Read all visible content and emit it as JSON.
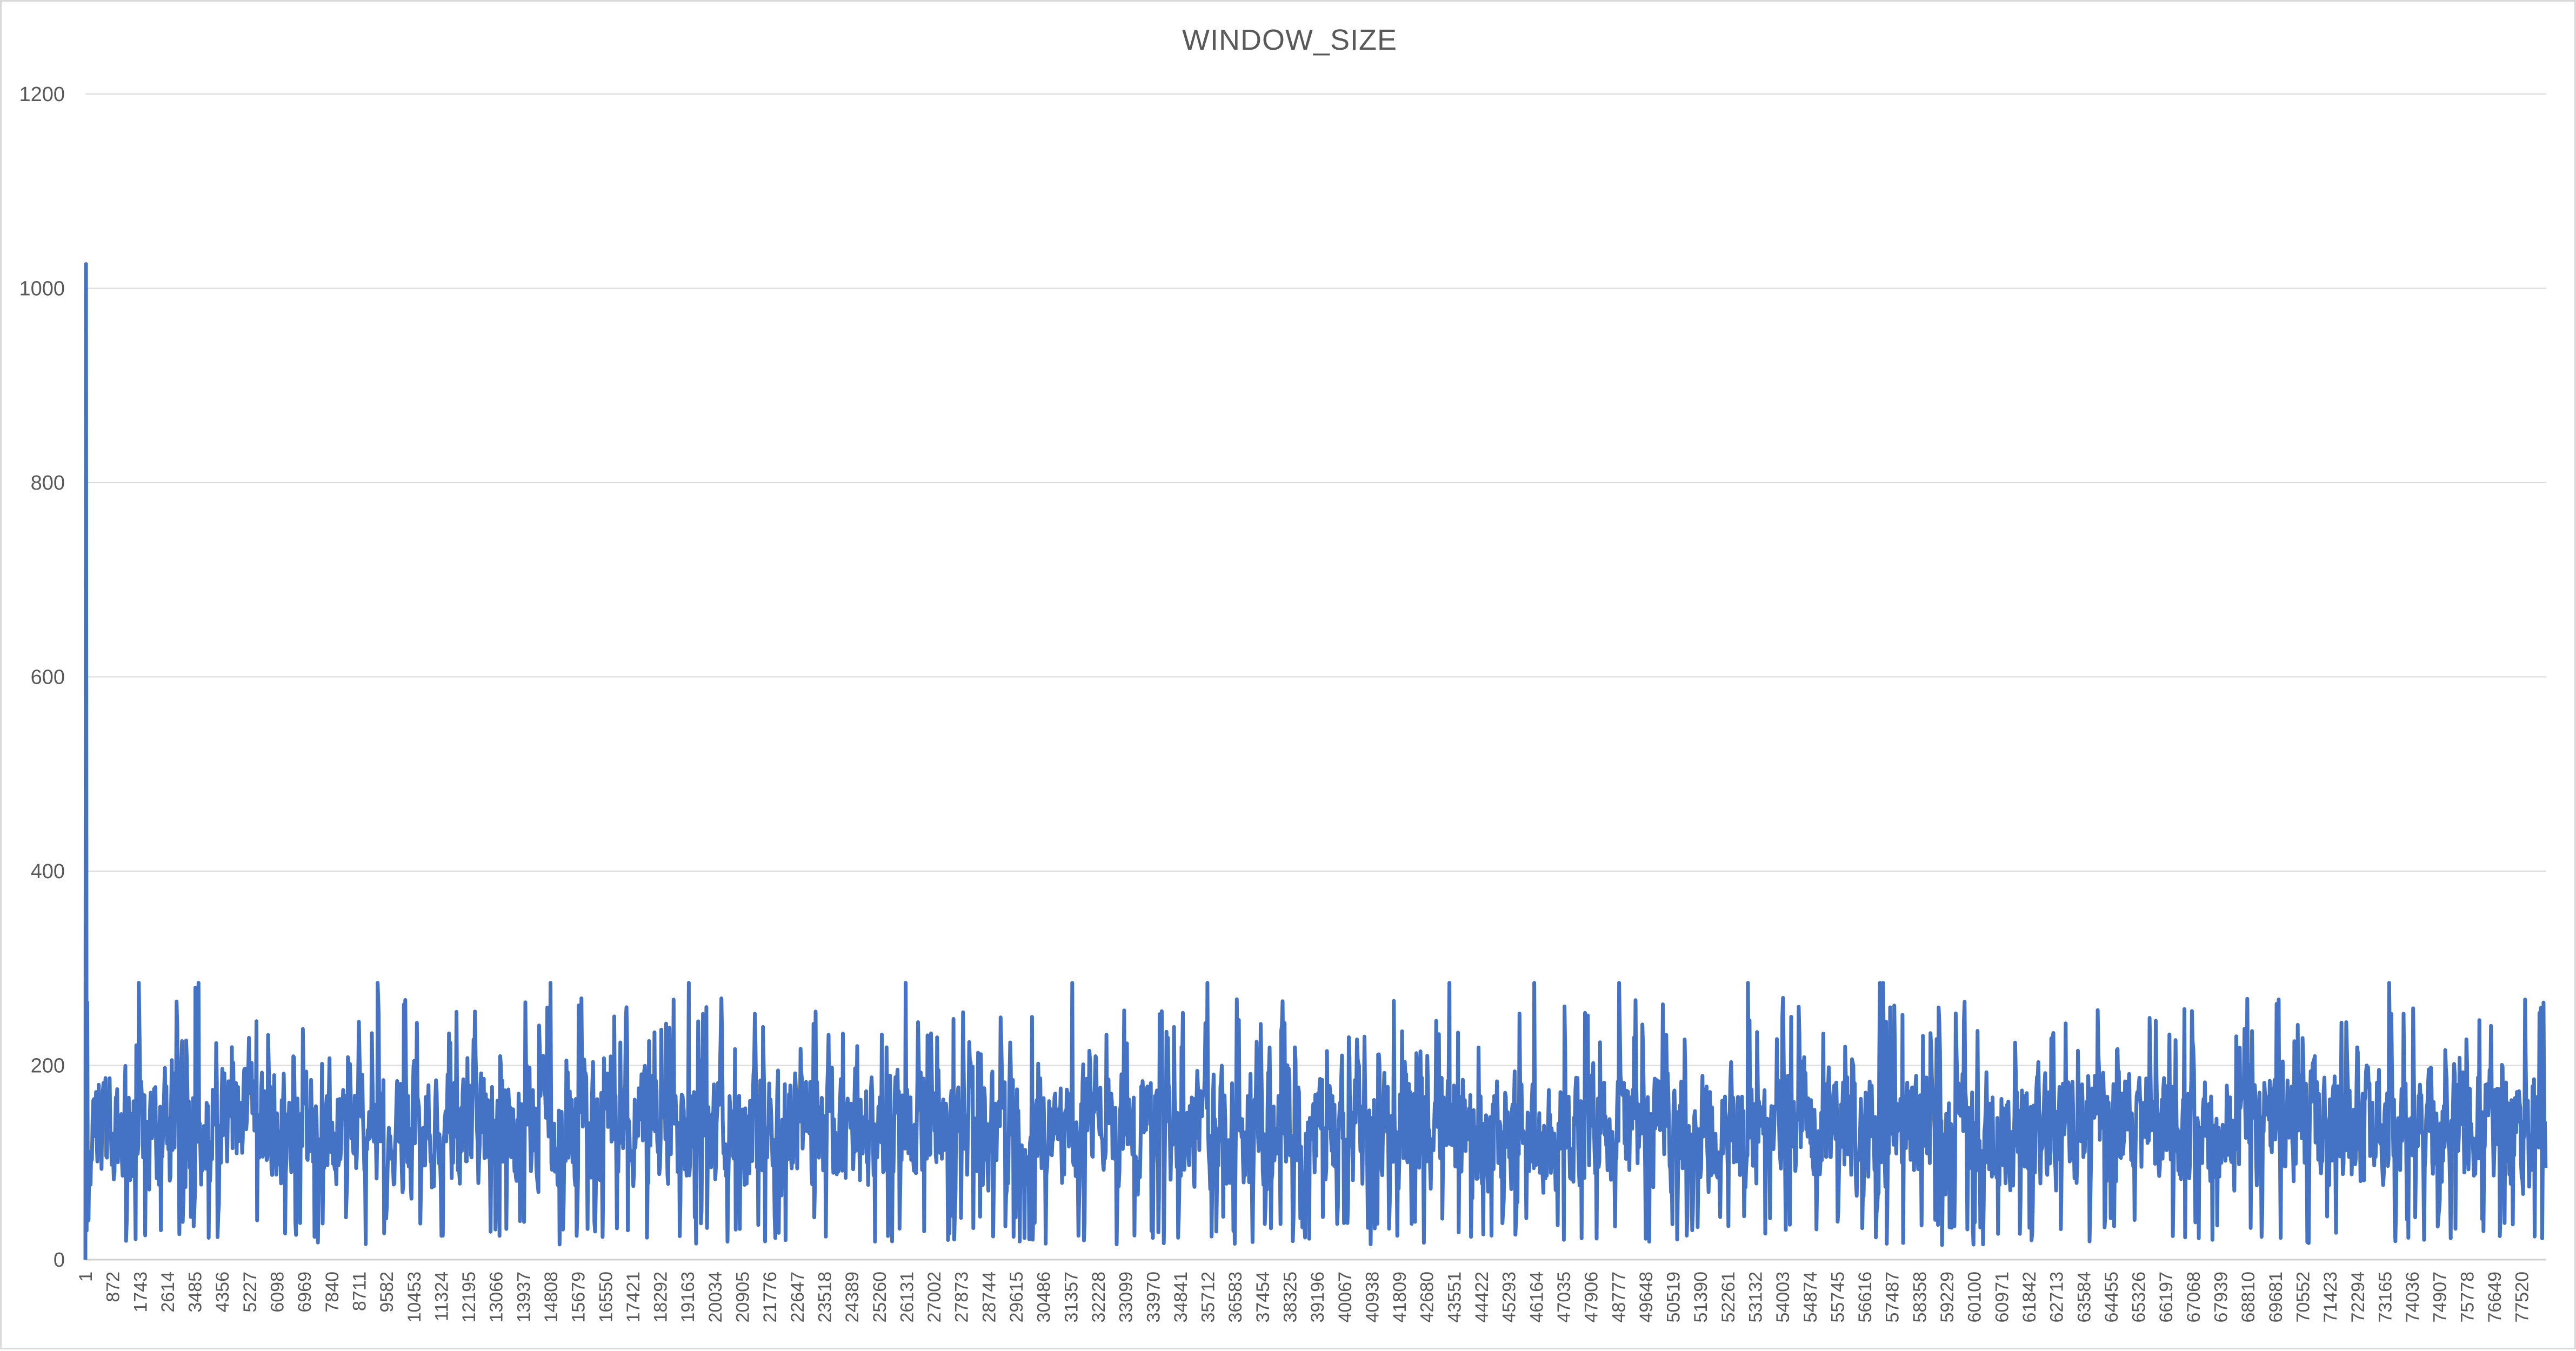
{
  "chart_data": {
    "type": "line",
    "title": "WINDOW_SIZE",
    "xlabel": "",
    "ylabel": "",
    "ylim": [
      0,
      1200
    ],
    "yticks": [
      0,
      200,
      400,
      600,
      800,
      1000,
      1200
    ],
    "xlim": [
      1,
      78300
    ],
    "x_tick_labels": [
      1,
      872,
      1743,
      2614,
      3485,
      4356,
      5227,
      6098,
      6969,
      7840,
      8711,
      9582,
      10453,
      11324,
      12195,
      13066,
      13937,
      14808,
      15679,
      16550,
      17421,
      18292,
      19163,
      20034,
      20905,
      21776,
      22647,
      23518,
      24389,
      25260,
      26131,
      27002,
      27873,
      28744,
      29615,
      30486,
      31357,
      32228,
      33099,
      33970,
      34841,
      35712,
      36583,
      37454,
      38325,
      39196,
      40067,
      40938,
      41809,
      42680,
      43551,
      44422,
      45293,
      46164,
      47035,
      47906,
      48777,
      49648,
      50519,
      51390,
      52261,
      53132,
      54003,
      54874,
      55745,
      56616,
      57487,
      58358,
      59229,
      60100,
      60971,
      61842,
      62713,
      63584,
      64455,
      65326,
      66197,
      67068,
      67939,
      68810,
      69681,
      70552,
      71423,
      72294,
      73165,
      74036,
      74907,
      75778,
      76649,
      77520
    ],
    "grid": true,
    "legend": "none",
    "series": [
      {
        "color": "#4472c4",
        "initial_spike": [
          [
            1,
            0
          ],
          [
            20,
            1025
          ],
          [
            40,
            30
          ],
          [
            60,
            265
          ],
          [
            80,
            40
          ]
        ],
        "typical_range": [
          15,
          285
        ],
        "typical_mean": 120,
        "peak_x": [
          1700,
          3500,
          3600,
          9300,
          14000,
          14800,
          19200,
          26100,
          31400,
          35700,
          43400,
          46100,
          48800,
          52900,
          57100,
          57200,
          73300
        ],
        "peak_values": [
          285,
          280,
          285,
          285,
          265,
          285,
          285,
          285,
          285,
          285,
          285,
          285,
          285,
          285,
          285,
          285,
          285
        ]
      }
    ]
  }
}
